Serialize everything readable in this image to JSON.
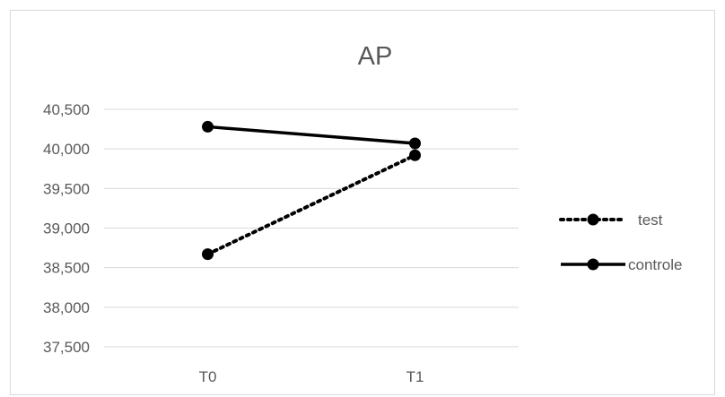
{
  "chart_data": {
    "type": "line",
    "title": "AP",
    "xlabel": "",
    "ylabel": "",
    "categories": [
      "T0",
      "T1"
    ],
    "ylim": [
      37500,
      40500
    ],
    "ytick_step": 500,
    "ytick_labels": [
      "37,500",
      "38,000",
      "38,500",
      "39,000",
      "39,500",
      "40,000",
      "40,500"
    ],
    "grid": true,
    "legend_position": "right",
    "series": [
      {
        "name": "test",
        "values": [
          38670,
          39920
        ],
        "line_style": "dotted",
        "color": "#000000"
      },
      {
        "name": "controle",
        "values": [
          40280,
          40070
        ],
        "line_style": "solid",
        "color": "#000000"
      }
    ]
  }
}
